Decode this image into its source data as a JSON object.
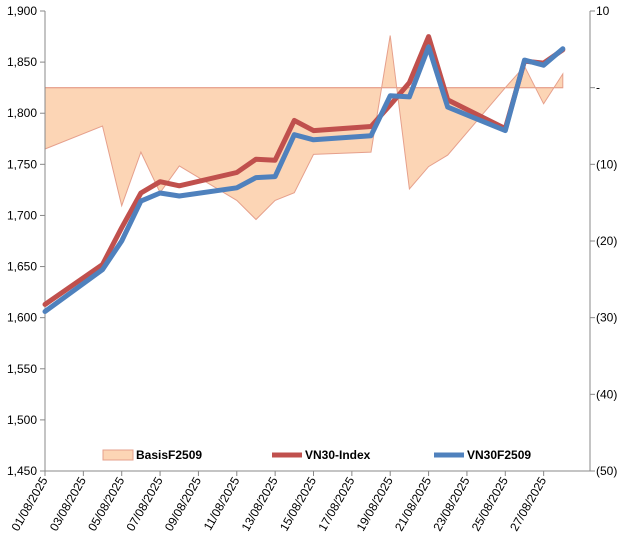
{
  "chart_data": {
    "type": "line",
    "x": [
      "01/08/2025",
      "04/08/2025",
      "05/08/2025",
      "06/08/2025",
      "07/08/2025",
      "08/08/2025",
      "11/08/2025",
      "12/08/2025",
      "13/08/2025",
      "14/08/2025",
      "15/08/2025",
      "18/08/2025",
      "19/08/2025",
      "20/08/2025",
      "21/08/2025",
      "22/08/2025",
      "25/08/2025",
      "26/08/2025",
      "27/08/2025",
      "28/08/2025"
    ],
    "x_tick_labels": [
      "01/08/2025",
      "03/08/2025",
      "05/08/2025",
      "07/08/2025",
      "09/08/2025",
      "11/08/2025",
      "13/08/2025",
      "15/08/2025",
      "17/08/2025",
      "19/08/2025",
      "21/08/2025",
      "23/08/2025",
      "25/08/2025",
      "27/08/2025"
    ],
    "y_left": {
      "min": 1450,
      "max": 1900,
      "step": 50,
      "tick_labels": [
        "1,450",
        "1,500",
        "1,550",
        "1,600",
        "1,650",
        "1,700",
        "1,750",
        "1,800",
        "1,850",
        "1,900"
      ]
    },
    "y_right": {
      "min": -50,
      "max": 10,
      "step": 10,
      "tick_labels": [
        "(50)",
        "(40)",
        "(30)",
        "(20)",
        "(10)",
        "-",
        "10"
      ]
    },
    "series": [
      {
        "name": "BasisF2509",
        "type": "area",
        "axis": "right",
        "color_fill": "#FCD5B5",
        "color_line": "#E6A08C",
        "values": [
          -8,
          -5,
          -15.4,
          -8.4,
          -13.7,
          -10.2,
          -14.7,
          -17.2,
          -14.7,
          -13.7,
          -8.7,
          -8.4,
          6.8,
          -13.2,
          -10.3,
          -8.8,
          0,
          2.8,
          -2.1,
          1.8
        ]
      },
      {
        "name": "VN30-Index",
        "type": "line",
        "axis": "left",
        "color": "#C0504D",
        "values": [
          1613,
          1652,
          1688,
          1722,
          1733,
          1729,
          1742,
          1755,
          1754,
          1793,
          1783,
          1787,
          1808,
          1830,
          1875,
          1813,
          1785,
          1851,
          1849,
          1862
        ]
      },
      {
        "name": "VN30F2509",
        "type": "line",
        "axis": "left",
        "color": "#4F81BD",
        "values": [
          1606,
          1647,
          1675,
          1714,
          1722,
          1719,
          1727,
          1737,
          1738,
          1779,
          1774,
          1778,
          1817,
          1816,
          1865,
          1806,
          1783,
          1852,
          1847,
          1863
        ]
      }
    ],
    "legend_position": "bottom-inside",
    "grid": false
  }
}
